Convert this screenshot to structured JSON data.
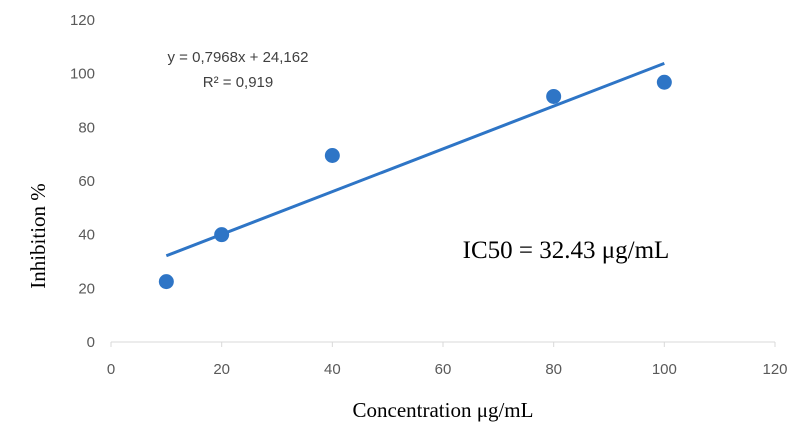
{
  "chart_data": {
    "type": "scatter",
    "title": "",
    "xlabel": "Concentration μg/mL",
    "ylabel": "Inhibition %",
    "xlim": [
      0,
      120
    ],
    "ylim": [
      0,
      120
    ],
    "xticks": [
      0,
      20,
      40,
      60,
      80,
      100,
      120
    ],
    "yticks": [
      0,
      20,
      40,
      60,
      80,
      100,
      120
    ],
    "grid": false,
    "legend": "none",
    "series": [
      {
        "x": [
          10,
          20,
          40,
          80,
          100
        ],
        "y": [
          22.5,
          40,
          69.5,
          91.5,
          96.8
        ],
        "color": "#2E75C6"
      }
    ],
    "trendline": {
      "type": "linear",
      "slope": 0.7968,
      "intercept": 24.162,
      "x_range": [
        10,
        100
      ],
      "color": "#2E75C6"
    },
    "annotations": {
      "equation": "y = 0,7968x + 24,162",
      "r_squared": "R² = 0,919",
      "ic50": "IC50 = 32.43 μg/mL"
    }
  }
}
